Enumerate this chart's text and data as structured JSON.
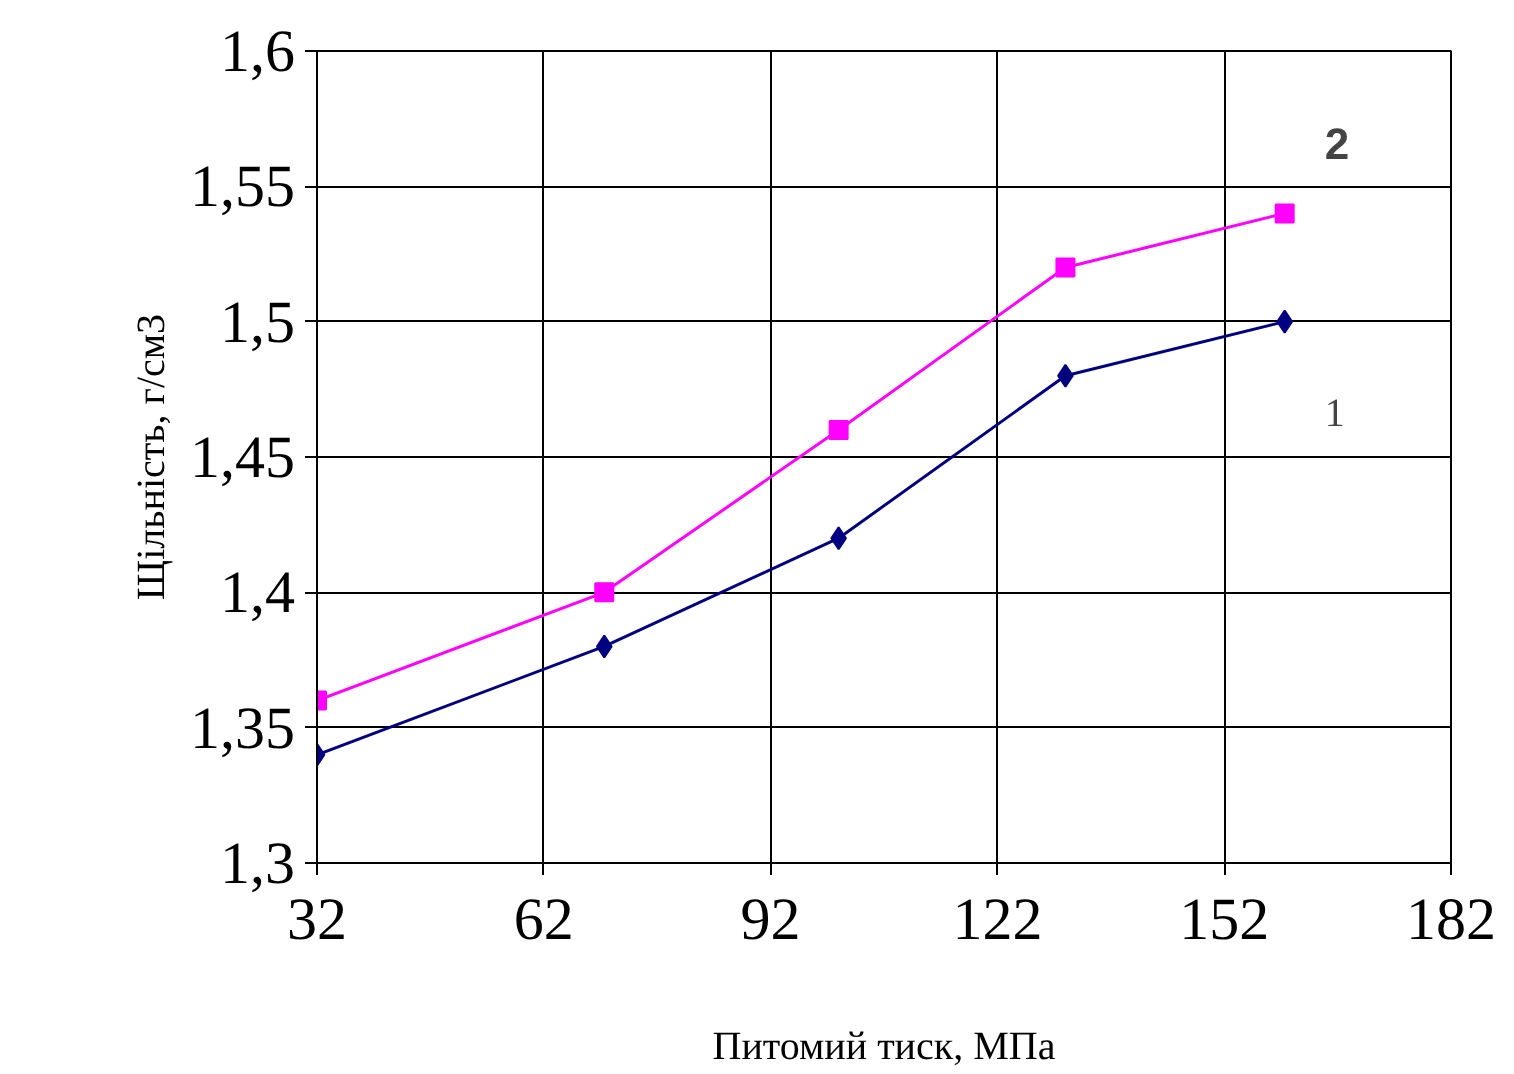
{
  "chart_data": {
    "type": "line",
    "xlabel": "Питомий тиск, МПа",
    "ylabel": "Щільність, г/см3",
    "x": [
      32,
      70,
      101,
      131,
      160
    ],
    "series": [
      {
        "name": "1",
        "color": "#000080",
        "marker": "diamond",
        "values": [
          1.34,
          1.38,
          1.42,
          1.48,
          1.5
        ]
      },
      {
        "name": "2",
        "color": "#ff00ff",
        "marker": "square",
        "values": [
          1.36,
          1.4,
          1.46,
          1.52,
          1.54
        ]
      }
    ],
    "xlim": [
      32,
      182
    ],
    "xticks": [
      32,
      62,
      92,
      122,
      152,
      182
    ],
    "ylim": [
      1.3,
      1.6
    ],
    "yticks": [
      {
        "value": 1.3,
        "label": "1,3"
      },
      {
        "value": 1.35,
        "label": "1,35"
      },
      {
        "value": 1.4,
        "label": "1,4"
      },
      {
        "value": 1.45,
        "label": "1,45"
      },
      {
        "value": 1.5,
        "label": "1,5"
      },
      {
        "value": 1.55,
        "label": "1,55"
      },
      {
        "value": 1.6,
        "label": "1,6"
      }
    ],
    "grid": true,
    "line_style": "solid"
  }
}
